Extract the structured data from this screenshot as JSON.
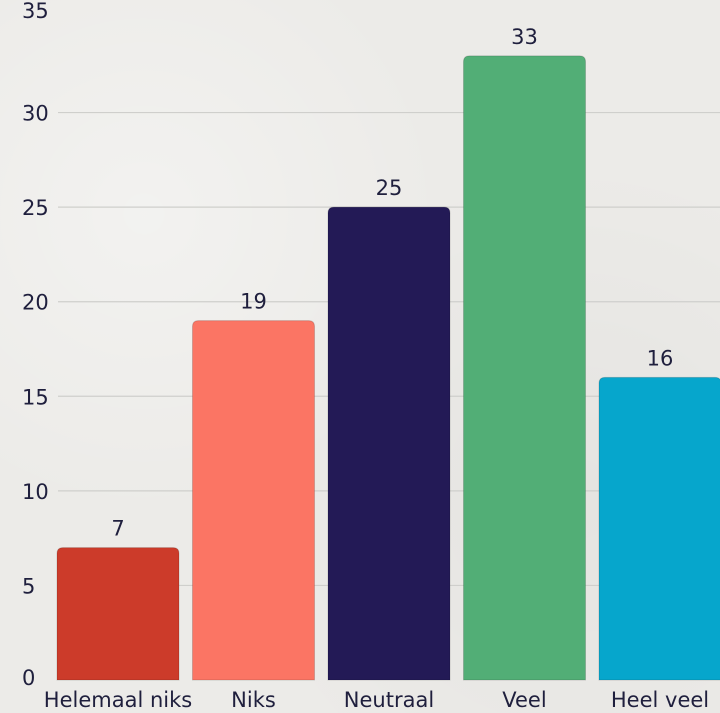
{
  "chart_data": {
    "type": "bar",
    "categories": [
      "Helemaal niks",
      "Niks",
      "Neutraal",
      "Veel",
      "Heel veel"
    ],
    "values": [
      7,
      19,
      25,
      33,
      16
    ],
    "colors": [
      "#cc3b2a",
      "#fb7564",
      "#231a56",
      "#52ae76",
      "#06a6cc"
    ],
    "yticks": [
      "0",
      "5",
      "10",
      "15",
      "20",
      "25",
      "30",
      "35"
    ],
    "ylim": [
      0,
      35
    ],
    "grid": true,
    "legend": "none"
  }
}
